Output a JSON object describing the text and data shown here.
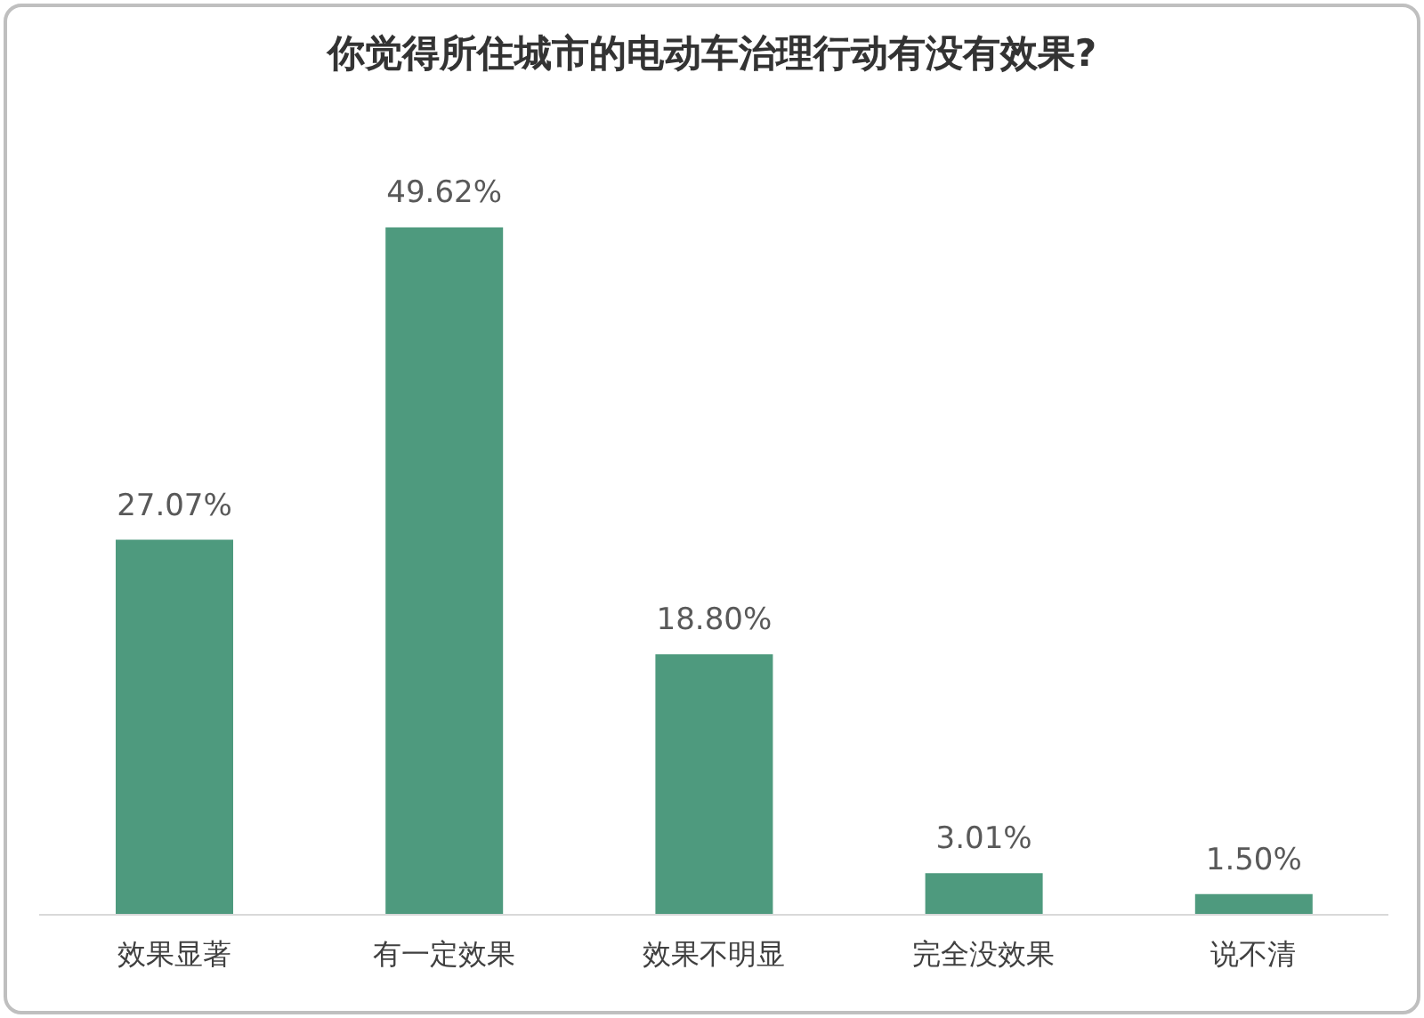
{
  "chart_data": {
    "type": "bar",
    "title": "你觉得所住城市的电动车治理行动有没有效果?",
    "categories": [
      "效果显著",
      "有一定效果",
      "效果不明显",
      "完全没效果",
      "说不清"
    ],
    "values": [
      27.07,
      49.62,
      18.8,
      3.01,
      1.5
    ],
    "value_labels": [
      "27.07%",
      "49.62%",
      "18.80%",
      "3.01%",
      "1.50%"
    ],
    "color": "#4e9a7e",
    "grid": false,
    "legend": false,
    "tick_labels": "x"
  }
}
